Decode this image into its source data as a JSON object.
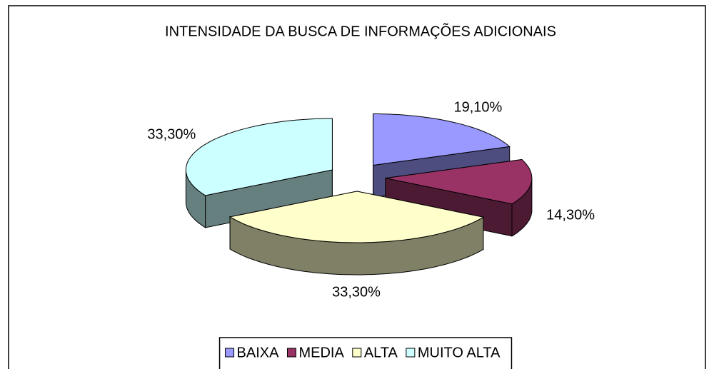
{
  "chart_data": {
    "type": "pie3d",
    "title": "INTENSIDADE DA BUSCA DE INFORMAÇÕES ADICIONAIS",
    "categories": [
      "BAIXA",
      "MEDIA",
      "ALTA",
      "MUITO ALTA"
    ],
    "values": [
      19.1,
      14.3,
      33.3,
      33.3
    ],
    "value_labels": [
      "19,10%",
      "14,30%",
      "33,30%",
      "33,30%"
    ],
    "colors": [
      "#9999ff",
      "#993366",
      "#ffffcc",
      "#ccffff"
    ],
    "legend": "bottom"
  }
}
